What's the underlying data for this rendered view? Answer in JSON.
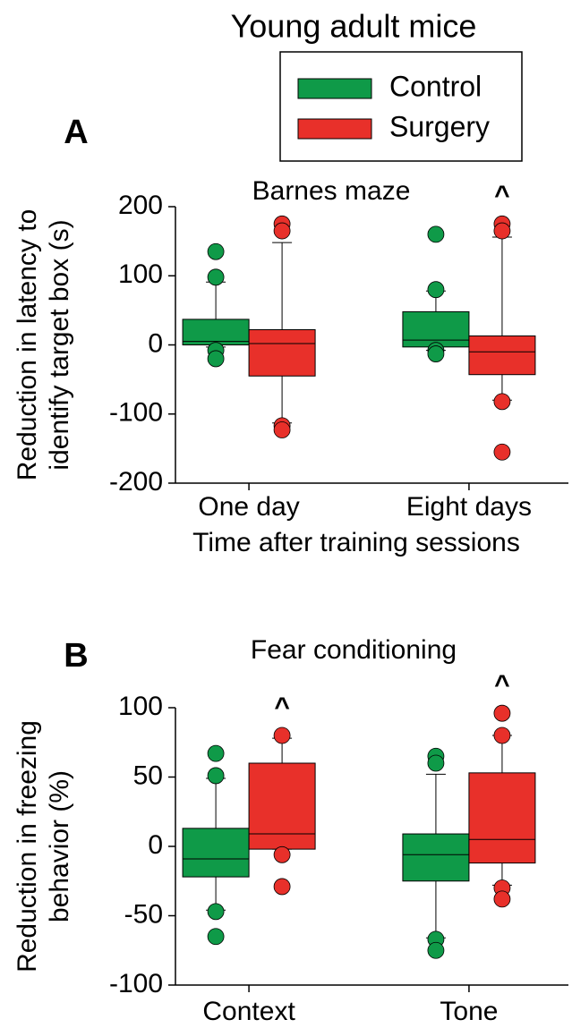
{
  "figure_title": "Young adult mice",
  "chart_data": [
    {
      "type": "box",
      "panel": "A",
      "subtitle": "Barnes maze",
      "ylabel": [
        "Reduction in latency to",
        "identify target box (s)"
      ],
      "xlabel": "Time after training sessions",
      "categories": [
        "One day",
        "Eight days"
      ],
      "ylim": [
        -200,
        200
      ],
      "yticks": [
        -200,
        -100,
        0,
        100,
        200
      ],
      "series": [
        {
          "name": "Control",
          "color": "#0f9a48",
          "boxes": [
            {
              "whisker_low": -3,
              "q1": 0,
              "median": 5,
              "q3": 37,
              "whisker_high": 91,
              "outliers": [
                135,
                98,
                -8,
                -20
              ]
            },
            {
              "whisker_low": -8,
              "q1": -3,
              "median": 7,
              "q3": 48,
              "whisker_high": 78,
              "outliers": [
                160,
                80,
                -8,
                -13
              ]
            }
          ]
        },
        {
          "name": "Surgery",
          "color": "#e8302a",
          "boxes": [
            {
              "whisker_low": -113,
              "q1": -45,
              "median": 2,
              "q3": 22,
              "whisker_high": 148,
              "outliers": [
                175,
                165,
                -117,
                -123
              ]
            },
            {
              "whisker_low": -80,
              "q1": -43,
              "median": -10,
              "q3": 13,
              "whisker_high": 156,
              "outliers": [
                175,
                165,
                -82,
                -155
              ]
            }
          ]
        }
      ],
      "annotations": [
        {
          "text": "^",
          "series": 1,
          "category": 1
        }
      ]
    },
    {
      "type": "box",
      "panel": "B",
      "subtitle": "Fear conditioning",
      "ylabel": [
        "Reduction in freezing",
        "behavior (%)"
      ],
      "categories": [
        "Context",
        "Tone"
      ],
      "ylim": [
        -100,
        100
      ],
      "yticks": [
        -100,
        -50,
        0,
        50,
        100
      ],
      "series": [
        {
          "name": "Control",
          "color": "#0f9a48",
          "boxes": [
            {
              "whisker_low": -46,
              "q1": -22,
              "median": -9,
              "q3": 13,
              "whisker_high": 49,
              "outliers": [
                67,
                51,
                -47,
                -65
              ]
            },
            {
              "whisker_low": -66,
              "q1": -25,
              "median": -6,
              "q3": 9,
              "whisker_high": 52,
              "outliers": [
                65,
                60,
                -67,
                -75
              ]
            }
          ]
        },
        {
          "name": "Surgery",
          "color": "#e8302a",
          "boxes": [
            {
              "whisker_low": -2,
              "q1": -2,
              "median": 9,
              "q3": 60,
              "whisker_high": 78,
              "outliers": [
                80,
                -6,
                -29
              ]
            },
            {
              "whisker_low": -28,
              "q1": -12,
              "median": 5,
              "q3": 53,
              "whisker_high": 80,
              "outliers": [
                96,
                80,
                -30,
                -38
              ]
            }
          ]
        }
      ],
      "annotations": [
        {
          "text": "^",
          "series": 1,
          "category": 0
        },
        {
          "text": "^",
          "series": 1,
          "category": 1
        }
      ]
    }
  ]
}
